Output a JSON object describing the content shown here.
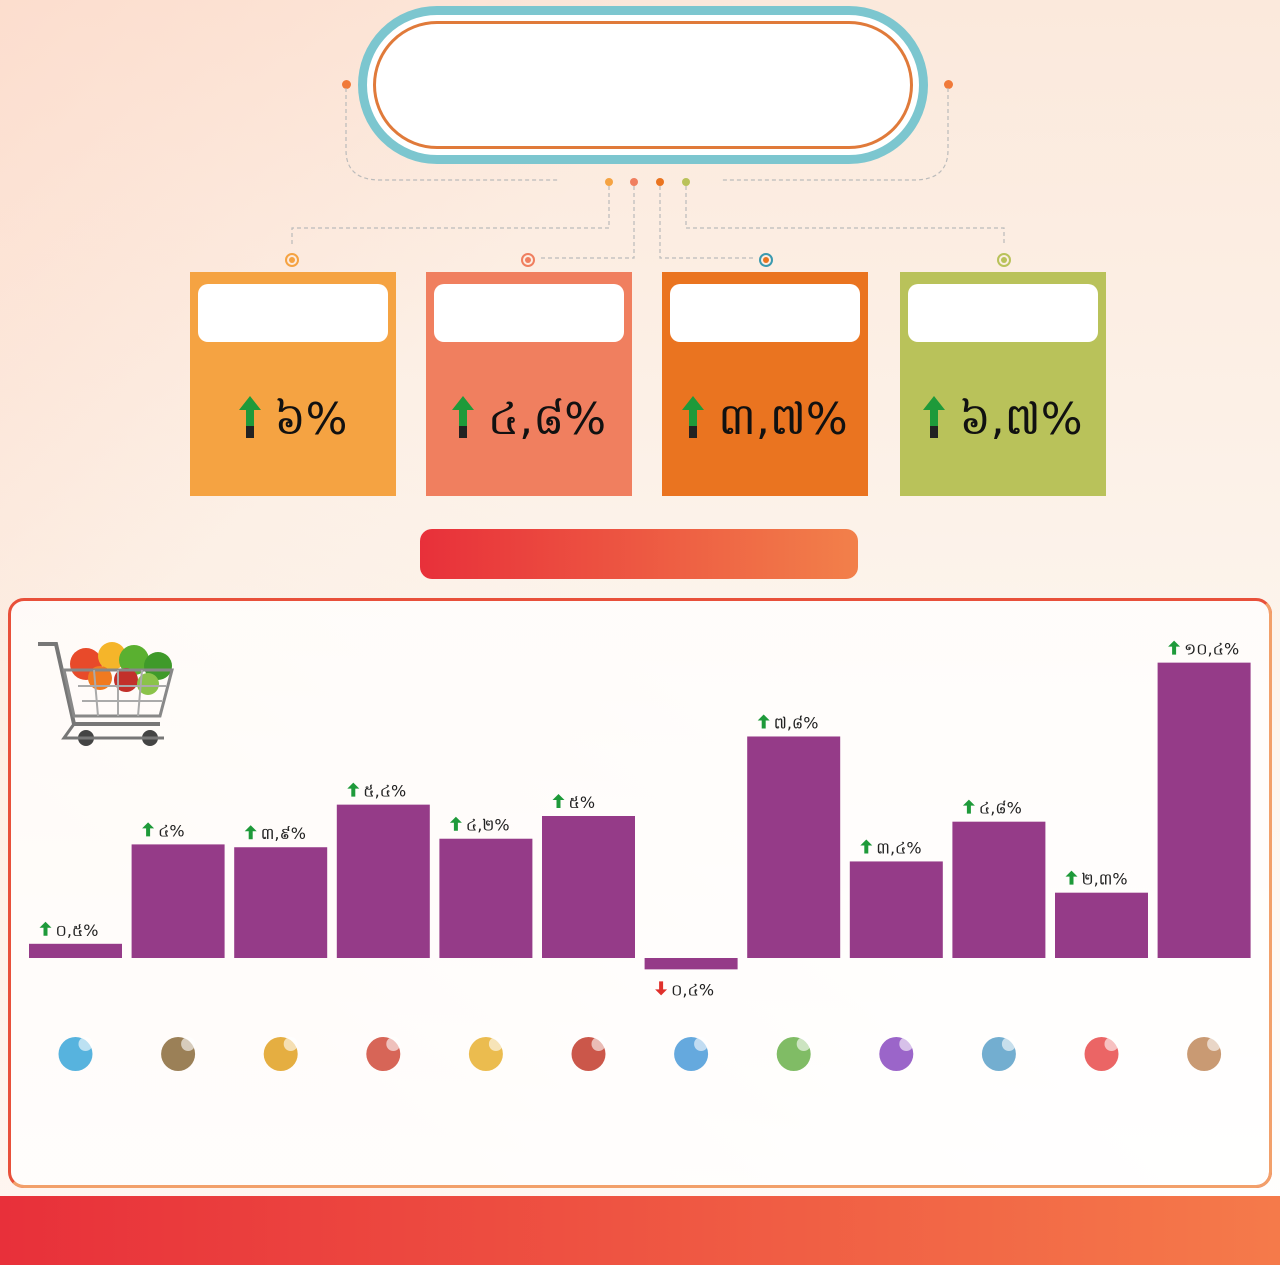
{
  "header": {
    "title": "",
    "subtitle": ""
  },
  "cards": [
    {
      "label": "",
      "value": "៦%",
      "color": "#f5a342"
    },
    {
      "label": "",
      "value": "៤,៨%",
      "color": "#f07f5f"
    },
    {
      "label": "",
      "value": "៣,៧%",
      "color": "#ea7420"
    },
    {
      "label": "",
      "value": "៦,៧%",
      "color": "#b9c25a"
    }
  ],
  "category_banner": "",
  "chart_data": {
    "type": "bar",
    "categories": [
      "",
      "",
      "",
      "",
      "",
      "",
      "",
      "",
      "",
      "",
      "",
      ""
    ],
    "values": [
      0.5,
      4.0,
      3.9,
      5.4,
      4.2,
      5.0,
      -0.4,
      7.8,
      3.4,
      4.8,
      2.3,
      10.4
    ],
    "value_labels": [
      "០,៥%",
      "៤%",
      "៣,៩%",
      "៥,៤%",
      "៤,២%",
      "៥%",
      "០,៤%",
      "៧,៨%",
      "៣,៤%",
      "៤,៨%",
      "២,៣%",
      "១០,៤%"
    ],
    "icons": [
      "globe-network-icon",
      "bottles-icon",
      "house-solar-icon",
      "people-recreation-icon",
      "boxes-worker-icon",
      "restaurant-icon",
      "transport-plane-icon",
      "food-vegetables-icon",
      "household-tools-icon",
      "education-books-icon",
      "health-heart-icon",
      "clothing-icon"
    ],
    "bar_color": "#953b88",
    "up_color": "#1e9a3a",
    "down_color": "#e0302c"
  },
  "footer": {
    "line1": "",
    "line2": ""
  }
}
